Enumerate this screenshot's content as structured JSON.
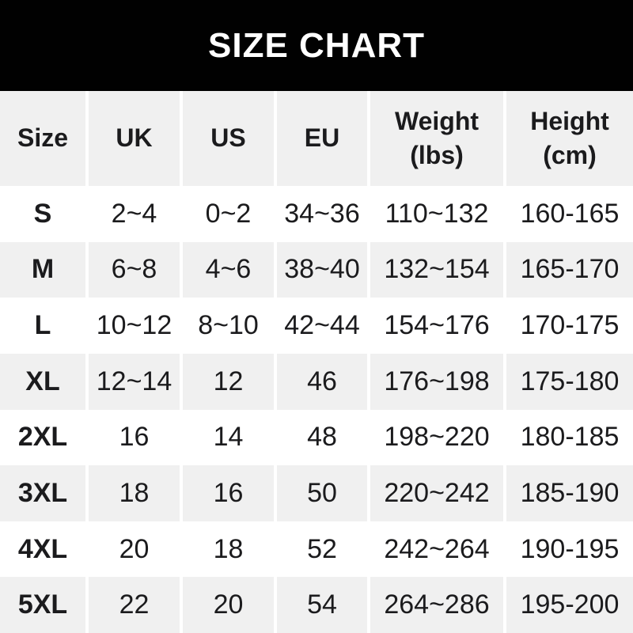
{
  "banner": {
    "title": "SIZE CHART"
  },
  "table": {
    "columns": [
      {
        "label": "Size"
      },
      {
        "label": "UK"
      },
      {
        "label": "US"
      },
      {
        "label": "EU"
      },
      {
        "label": "Weight",
        "sub": "(lbs)"
      },
      {
        "label": "Height",
        "sub": "(cm)"
      }
    ]
  },
  "chart_data": {
    "type": "table",
    "title": "SIZE CHART",
    "columns": [
      "Size",
      "UK",
      "US",
      "EU",
      "Weight (lbs)",
      "Height (cm)"
    ],
    "rows": [
      [
        "S",
        "2~4",
        "0~2",
        "34~36",
        "110~132",
        "160-165"
      ],
      [
        "M",
        "6~8",
        "4~6",
        "38~40",
        "132~154",
        "165-170"
      ],
      [
        "L",
        "10~12",
        "8~10",
        "42~44",
        "154~176",
        "170-175"
      ],
      [
        "XL",
        "12~14",
        "12",
        "46",
        "176~198",
        "175-180"
      ],
      [
        "2XL",
        "16",
        "14",
        "48",
        "198~220",
        "180-185"
      ],
      [
        "3XL",
        "18",
        "16",
        "50",
        "220~242",
        "185-190"
      ],
      [
        "4XL",
        "20",
        "18",
        "52",
        "242~264",
        "190-195"
      ],
      [
        "5XL",
        "22",
        "20",
        "54",
        "264~286",
        "195-200"
      ]
    ]
  },
  "colors": {
    "banner_bg": "#000000",
    "banner_text": "#ffffff",
    "alt_row_bg": "#f0f0f0",
    "row_bg": "#ffffff",
    "text": "#1b1b1d"
  }
}
